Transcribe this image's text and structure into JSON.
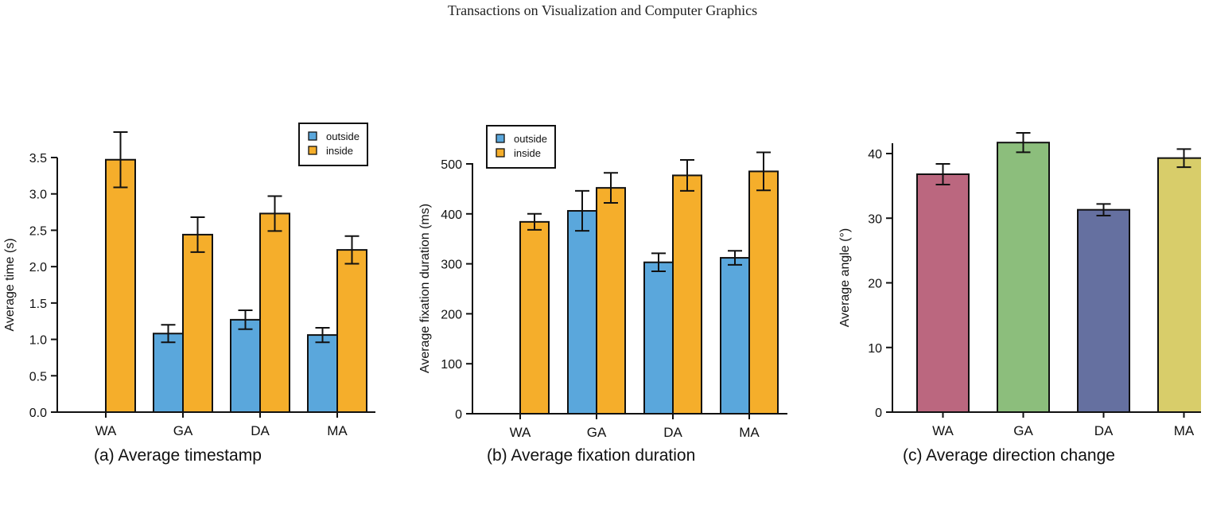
{
  "header": {
    "title": "Transactions on Visualization and Computer Graphics"
  },
  "colors": {
    "outside": "#5aa7dc",
    "inside": "#f5ae2b"
  },
  "chart_data": [
    {
      "id": "a",
      "type": "bar",
      "caption": "(a)  Average timestamp",
      "ylabel": "Average time (s)",
      "categories": [
        "WA",
        "GA",
        "DA",
        "MA"
      ],
      "ylim": [
        0,
        3.5
      ],
      "yticks": [
        0.0,
        0.5,
        1.0,
        1.5,
        2.0,
        2.5,
        3.0,
        3.5
      ],
      "ytick_labels": [
        "0.0",
        "0.5",
        "1.0",
        "1.5",
        "2.0",
        "2.5",
        "3.0",
        "3.5"
      ],
      "legend": {
        "position": "top-right",
        "entries": [
          "outside",
          "inside"
        ]
      },
      "series": [
        {
          "name": "outside",
          "color": "#5aa7dc",
          "values": [
            null,
            1.08,
            1.27,
            1.06
          ],
          "errors": [
            null,
            0.12,
            0.13,
            0.1
          ]
        },
        {
          "name": "inside",
          "color": "#f5ae2b",
          "values": [
            3.47,
            2.44,
            2.73,
            2.23
          ],
          "errors": [
            0.38,
            0.24,
            0.24,
            0.19
          ]
        }
      ]
    },
    {
      "id": "b",
      "type": "bar",
      "caption": "(b)  Average fixation duration",
      "ylabel": "Average fixation duration (ms)",
      "categories": [
        "WA",
        "GA",
        "DA",
        "MA"
      ],
      "ylim": [
        0,
        500
      ],
      "yticks": [
        0,
        100,
        200,
        300,
        400,
        500
      ],
      "ytick_labels": [
        "0",
        "100",
        "200",
        "300",
        "400",
        "500"
      ],
      "legend": {
        "position": "top-left",
        "entries": [
          "outside",
          "inside"
        ]
      },
      "series": [
        {
          "name": "outside",
          "color": "#5aa7dc",
          "values": [
            null,
            406,
            303,
            312
          ],
          "errors": [
            null,
            40,
            18,
            14
          ]
        },
        {
          "name": "inside",
          "color": "#f5ae2b",
          "values": [
            384,
            452,
            477,
            485
          ],
          "errors": [
            16,
            30,
            31,
            38
          ]
        }
      ]
    },
    {
      "id": "c",
      "type": "bar",
      "caption": "(c)  Average direction change",
      "ylabel": "Average angle (°)",
      "categories": [
        "WA",
        "GA",
        "DA",
        "MA"
      ],
      "ylim": [
        0,
        40
      ],
      "yticks": [
        0,
        10,
        20,
        30,
        40
      ],
      "ytick_labels": [
        "0",
        "10",
        "20",
        "30",
        "40"
      ],
      "colors": [
        "#bb677f",
        "#8cbe7c",
        "#6570a0",
        "#d8cd6a"
      ],
      "values": [
        36.8,
        41.7,
        31.3,
        39.3
      ],
      "errors": [
        1.6,
        1.5,
        0.9,
        1.4
      ]
    }
  ]
}
